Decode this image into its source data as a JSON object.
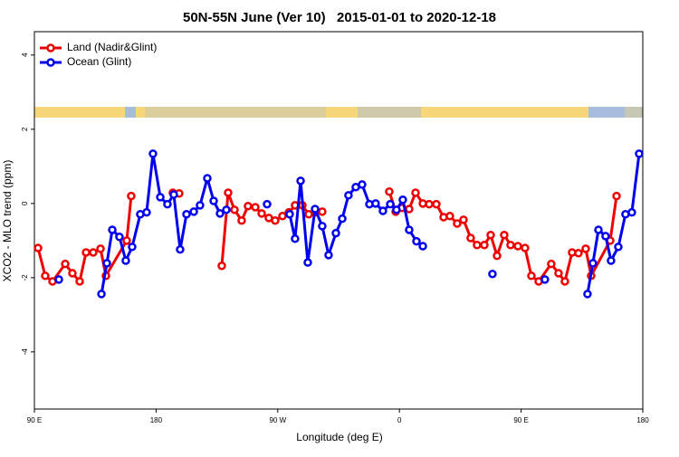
{
  "chart_data": {
    "type": "line",
    "title": "50N-55N June (Ver 10)   2015-01-01 to 2020-12-18",
    "x_label": "Longitude (deg E)",
    "y_label": "XCO2 - MLO trend (ppm)",
    "xlim": [
      90,
      540
    ],
    "xticks": [
      {
        "value": 90,
        "label": "90 E"
      },
      {
        "value": 180,
        "label": "180"
      },
      {
        "value": 270,
        "label": "90 W"
      },
      {
        "value": 360,
        "label": "0"
      },
      {
        "value": 450,
        "label": "90 E"
      },
      {
        "value": 540,
        "label": "180"
      }
    ],
    "ylim": [
      -5.54,
      4.63
    ],
    "yticks": [
      -4,
      -2,
      0,
      2,
      4
    ],
    "legend": "top-left",
    "series": [
      {
        "name": "Land (Nadir&Glint)",
        "color": "#ee0000",
        "x": [
          92.7,
          98.0,
          103.4,
          112.8,
          118.1,
          123.5,
          128.2,
          133.5,
          138.9,
          142.9,
          158.3,
          161.6,
          null,
          192.4,
          197.1,
          null,
          228.6,
          233.3,
          238.0,
          243.3,
          248.0,
          253.4,
          258.1,
          263.4,
          268.1,
          273.5,
          278.2,
          282.8,
          288.2,
          292.9,
          297.6,
          302.9,
          null,
          352.5,
          357.2,
          361.9,
          367.2,
          371.9,
          377.3,
          382.0,
          387.3,
          392.7,
          397.3,
          402.7,
          407.4,
          412.7,
          417.4,
          422.8,
          427.5,
          432.2,
          437.5,
          442.2,
          447.6,
          452.9,
          457.6,
          463.0,
          472.3,
          477.7,
          482.4,
          487.7,
          492.4,
          497.8,
          501.8,
          515.9,
          520.6
        ],
        "values": [
          -1.2,
          -1.95,
          -2.1,
          -1.63,
          -1.88,
          -2.1,
          -1.32,
          -1.32,
          -1.22,
          -1.95,
          -1.0,
          0.2,
          null,
          0.29,
          0.27,
          null,
          -1.68,
          0.29,
          -0.17,
          -0.46,
          -0.07,
          -0.1,
          -0.27,
          -0.39,
          -0.46,
          -0.34,
          -0.24,
          -0.05,
          -0.05,
          -0.29,
          -0.24,
          -0.22,
          null,
          0.32,
          -0.22,
          -0.12,
          -0.15,
          0.29,
          0,
          -0.02,
          -0.02,
          -0.37,
          -0.34,
          -0.54,
          -0.44,
          -0.93,
          -1.12,
          -1.12,
          -0.85,
          -1.41,
          -0.85,
          -1.12,
          -1.15,
          -1.2,
          -1.95,
          -2.1,
          -1.63,
          -1.88,
          -2.1,
          -1.32,
          -1.34,
          -1.22,
          -1.95,
          -1.0,
          0.2
        ]
      },
      {
        "name": "Ocean (Glint)",
        "color": "#0000ee",
        "x": [
          108.1,
          null,
          139.6,
          143.6,
          147.6,
          152.9,
          157.6,
          162.3,
          168.3,
          173.0,
          177.7,
          183.1,
          188.4,
          193.1,
          197.8,
          202.5,
          207.9,
          212.5,
          217.9,
          222.6,
          227.3,
          232.0,
          null,
          262.1,
          null,
          278.8,
          282.8,
          286.9,
          292.2,
          297.6,
          302.9,
          307.6,
          313.0,
          317.7,
          322.3,
          327.7,
          332.4,
          337.8,
          342.4,
          347.8,
          353.2,
          357.8,
          362.5,
          367.2,
          372.6,
          377.3,
          null,
          428.8,
          null,
          467.6,
          null,
          499.1,
          503.1,
          507.2,
          512.5,
          516.5,
          521.9,
          527.2,
          531.9,
          537.3
        ],
        "values": [
          -2.05,
          null,
          -2.44,
          -1.61,
          -0.71,
          -0.9,
          -1.54,
          -1.17,
          -0.29,
          -0.24,
          1.34,
          0.17,
          -0.02,
          0.24,
          -1.24,
          -0.29,
          -0.22,
          -0.05,
          0.68,
          0.07,
          -0.27,
          -0.17,
          null,
          -0.02,
          null,
          -0.29,
          -0.95,
          0.61,
          -1.59,
          -0.15,
          -0.61,
          -1.39,
          -0.8,
          -0.41,
          0.22,
          0.44,
          0.51,
          -0.02,
          0,
          -0.2,
          -0.02,
          -0.17,
          0.1,
          -0.71,
          -1.02,
          -1.15,
          null,
          -1.9,
          null,
          -2.05,
          null,
          -2.44,
          -1.61,
          -0.71,
          -0.88,
          -1.54,
          -1.17,
          -0.29,
          -0.24,
          1.34
        ]
      }
    ]
  }
}
